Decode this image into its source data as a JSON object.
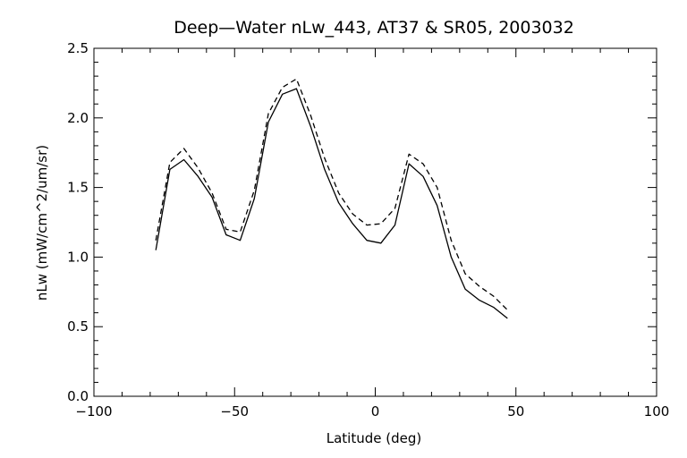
{
  "chart_data": {
    "type": "line",
    "title": "Deep—Water nLw_443, AT37 & SR05, 2003032",
    "xlabel": "Latitude (deg)",
    "ylabel": "nLw (mW/cm^2/um/sr)",
    "xlim": [
      -100,
      100
    ],
    "ylim": [
      0.0,
      2.5
    ],
    "x_ticks": [
      -100,
      -50,
      0,
      50,
      100
    ],
    "x_tick_labels": [
      "−100",
      "−50",
      "0",
      "50",
      "100"
    ],
    "y_ticks": [
      0.0,
      0.5,
      1.0,
      1.5,
      2.0,
      2.5
    ],
    "y_tick_labels": [
      "0.0",
      "0.5",
      "1.0",
      "1.5",
      "2.0",
      "2.5"
    ],
    "grid": false,
    "legend": "none",
    "series": [
      {
        "style": "solid",
        "color": "#000000",
        "x": [
          -78,
          -73,
          -68,
          -63,
          -58,
          -53,
          -48,
          -43,
          -38,
          -33,
          -28,
          -23,
          -18,
          -13,
          -8,
          -3,
          2,
          7,
          12,
          17,
          22,
          27,
          32,
          37,
          42,
          47
        ],
        "y": [
          1.05,
          1.63,
          1.7,
          1.58,
          1.43,
          1.16,
          1.12,
          1.42,
          1.97,
          2.17,
          2.21,
          1.94,
          1.63,
          1.39,
          1.24,
          1.12,
          1.1,
          1.23,
          1.67,
          1.58,
          1.37,
          1.0,
          0.77,
          0.69,
          0.64,
          0.56
        ]
      },
      {
        "style": "dashed",
        "color": "#000000",
        "x": [
          -78,
          -73,
          -68,
          -63,
          -58,
          -53,
          -48,
          -43,
          -38,
          -33,
          -28,
          -23,
          -18,
          -13,
          -8,
          -3,
          2,
          7,
          12,
          17,
          22,
          27,
          32,
          37,
          42,
          47
        ],
        "y": [
          1.12,
          1.68,
          1.78,
          1.64,
          1.46,
          1.2,
          1.18,
          1.48,
          2.03,
          2.22,
          2.28,
          2.02,
          1.71,
          1.46,
          1.31,
          1.23,
          1.24,
          1.35,
          1.74,
          1.67,
          1.5,
          1.12,
          0.88,
          0.79,
          0.72,
          0.62
        ]
      }
    ]
  }
}
